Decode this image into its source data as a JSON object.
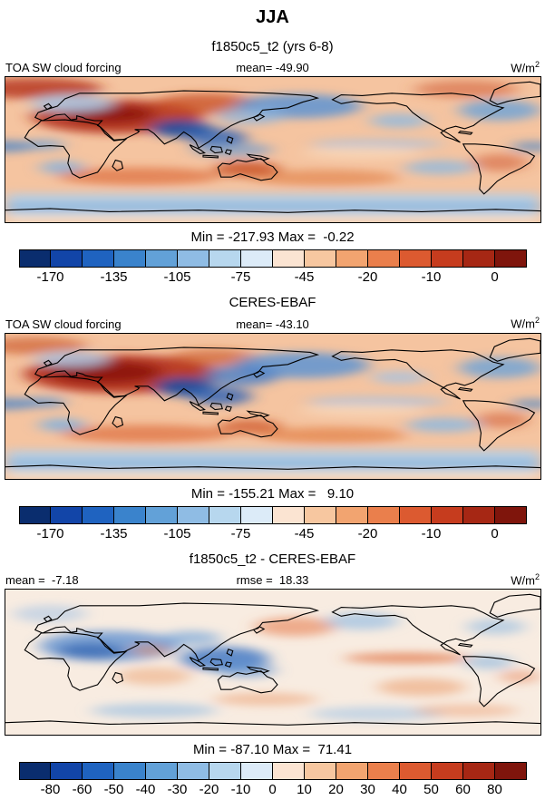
{
  "page": {
    "title": "JJA",
    "subtitle": "f1850c5_t2 (yrs 6-8)"
  },
  "units": {
    "base": "W/m",
    "sup": "2"
  },
  "section_headers": {
    "obs": "CERES-EBAF",
    "diff": "f1850c5_t2 - CERES-EBAF"
  },
  "panels": [
    {
      "label_left": "TOA SW cloud forcing",
      "stat_center": "mean= -49.90",
      "minmax": "Min = -217.93 Max =  -0.22",
      "colorbar": {
        "colors": [
          "#0a2d6e",
          "#1245a8",
          "#1f63c0",
          "#3a83cc",
          "#62a1d8",
          "#8fbce4",
          "#b7d7ee",
          "#dcebf8",
          "#fbe4d2",
          "#f7c7a0",
          "#f2a470",
          "#ea7f4c",
          "#dc5a30",
          "#c63c1e",
          "#a62714",
          "#7f150c"
        ],
        "tick_labels": [
          "-170",
          "-135",
          "-105",
          "-75",
          "-45",
          "-20",
          "-10",
          "0"
        ],
        "tick_indices": [
          1,
          3,
          5,
          7,
          9,
          11,
          13,
          15
        ]
      }
    },
    {
      "label_left": "TOA SW cloud forcing",
      "stat_center": "mean= -43.10",
      "minmax": "Min = -155.21 Max =   9.10",
      "colorbar": {
        "colors": [
          "#0a2d6e",
          "#1245a8",
          "#1f63c0",
          "#3a83cc",
          "#62a1d8",
          "#8fbce4",
          "#b7d7ee",
          "#dcebf8",
          "#fbe4d2",
          "#f7c7a0",
          "#f2a470",
          "#ea7f4c",
          "#dc5a30",
          "#c63c1e",
          "#a62714",
          "#7f150c"
        ],
        "tick_labels": [
          "-170",
          "-135",
          "-105",
          "-75",
          "-45",
          "-20",
          "-10",
          "0"
        ],
        "tick_indices": [
          1,
          3,
          5,
          7,
          9,
          11,
          13,
          15
        ]
      }
    },
    {
      "label_left": "mean =  -7.18",
      "stat_center": "rmse =  18.33",
      "minmax": "Min = -87.10 Max =  71.41",
      "colorbar": {
        "colors": [
          "#0a2d6e",
          "#1245a8",
          "#1f63c0",
          "#3a83cc",
          "#62a1d8",
          "#8fbce4",
          "#b7d7ee",
          "#dcebf8",
          "#fbe4d2",
          "#f7c7a0",
          "#f2a470",
          "#ea7f4c",
          "#dc5a30",
          "#c63c1e",
          "#a62714",
          "#7f150c"
        ],
        "tick_labels": [
          "-80",
          "-60",
          "-50",
          "-40",
          "-30",
          "-20",
          "-10",
          "0",
          "10",
          "20",
          "30",
          "40",
          "50",
          "60",
          "80"
        ],
        "tick_indices": [
          1,
          2,
          3,
          4,
          5,
          6,
          7,
          8,
          9,
          10,
          11,
          12,
          13,
          14,
          15
        ]
      }
    }
  ],
  "chart_data": [
    {
      "type": "heatmap",
      "projection": "global-lat-lon-map",
      "season": "JJA",
      "title": "TOA SW cloud forcing",
      "dataset": "f1850c5_t2 (yrs 6-8)",
      "units": "W/m^2",
      "mean": -49.9,
      "min": -217.93,
      "max": -0.22,
      "contour_levels": [
        -170,
        -150,
        -135,
        -120,
        -105,
        -90,
        -75,
        -60,
        -45,
        -30,
        -20,
        -15,
        -10,
        -5,
        0
      ],
      "labeled_levels": [
        -170,
        -135,
        -105,
        -75,
        -45,
        -20,
        -10,
        0
      ],
      "legend_position": "bottom"
    },
    {
      "type": "heatmap",
      "projection": "global-lat-lon-map",
      "season": "JJA",
      "title": "TOA SW cloud forcing",
      "dataset": "CERES-EBAF",
      "units": "W/m^2",
      "mean": -43.1,
      "min": -155.21,
      "max": 9.1,
      "contour_levels": [
        -170,
        -150,
        -135,
        -120,
        -105,
        -90,
        -75,
        -60,
        -45,
        -30,
        -20,
        -15,
        -10,
        -5,
        0
      ],
      "labeled_levels": [
        -170,
        -135,
        -105,
        -75,
        -45,
        -20,
        -10,
        0
      ],
      "legend_position": "bottom"
    },
    {
      "type": "heatmap",
      "projection": "global-lat-lon-map",
      "season": "JJA",
      "title": "TOA SW cloud forcing difference",
      "dataset": "f1850c5_t2 - CERES-EBAF",
      "units": "W/m^2",
      "mean": -7.18,
      "rmse": 18.33,
      "min": -87.1,
      "max": 71.41,
      "contour_levels": [
        -80,
        -60,
        -50,
        -40,
        -30,
        -20,
        -10,
        0,
        10,
        20,
        30,
        40,
        50,
        60,
        80
      ],
      "labeled_levels": [
        -80,
        -60,
        -50,
        -40,
        -30,
        -20,
        -10,
        0,
        10,
        20,
        30,
        40,
        50,
        60,
        80
      ],
      "legend_position": "bottom"
    }
  ]
}
